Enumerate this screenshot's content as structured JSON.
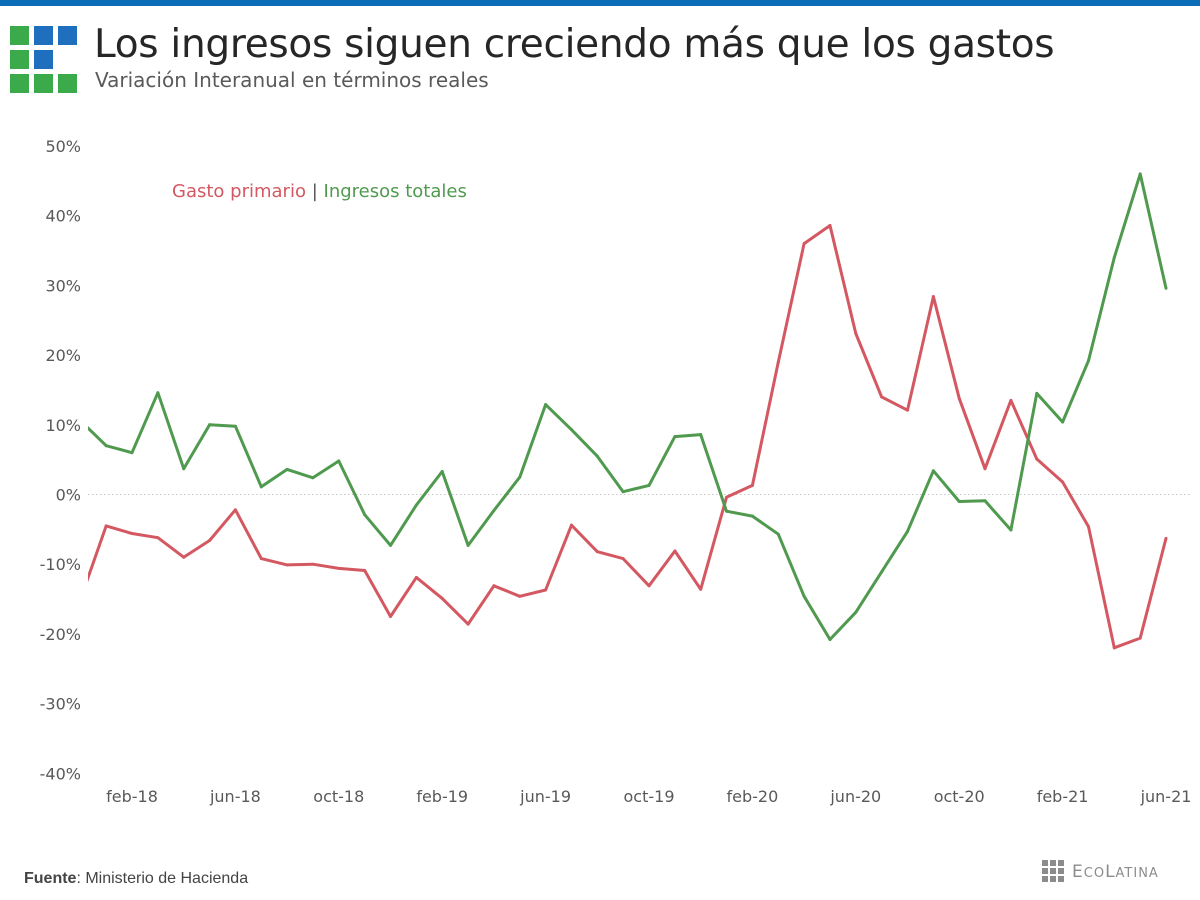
{
  "colors": {
    "top_bar": "#0b6cb8",
    "logo_green": "#3aaa4a",
    "logo_blue": "#1f6fbf",
    "series_gasto": "#d45861",
    "series_ingresos": "#4f9a4f",
    "zero_line": "#c8c8c8"
  },
  "header": {
    "title": "Los ingresos siguen creciendo más que los gastos",
    "subtitle": "Variación Interanual en términos reales",
    "logo_grid": [
      [
        "green",
        "blue",
        "blue"
      ],
      [
        "green",
        "blue",
        ""
      ],
      [
        "green",
        "green",
        "green"
      ]
    ]
  },
  "legend": {
    "gasto_label": "Gasto primario",
    "separator": "|",
    "ingresos_label": "Ingresos totales"
  },
  "footer": {
    "source_label": "Fuente",
    "source_text": ": Ministerio de Hacienda",
    "brand_first": "E",
    "brand_mid": "CO",
    "brand_l": "L",
    "brand_rest": "ATINA"
  },
  "chart_data": {
    "type": "line",
    "title": "Los ingresos siguen creciendo más que los gastos",
    "subtitle": "Variación Interanual en términos reales",
    "xlabel": "",
    "ylabel": "",
    "y_unit": "%",
    "ylim": [
      -40,
      50
    ],
    "y_ticks": [
      50,
      40,
      30,
      20,
      10,
      0,
      -10,
      -20,
      -30,
      -40
    ],
    "y_tick_labels": [
      "50%",
      "40%",
      "30%",
      "20%",
      "10%",
      "0%",
      "-10%",
      "-20%",
      "-30%",
      "-40%"
    ],
    "zero_line": "dotted",
    "grid": false,
    "legend_position": "top-left (inline text)",
    "x": [
      "dic-17",
      "ene-18",
      "feb-18",
      "mar-18",
      "abr-18",
      "may-18",
      "jun-18",
      "jul-18",
      "ago-18",
      "sep-18",
      "oct-18",
      "nov-18",
      "dic-18",
      "ene-19",
      "feb-19",
      "mar-19",
      "abr-19",
      "may-19",
      "jun-19",
      "jul-19",
      "ago-19",
      "sep-19",
      "oct-19",
      "nov-19",
      "dic-19",
      "ene-20",
      "feb-20",
      "mar-20",
      "abr-20",
      "may-20",
      "jun-20",
      "jul-20",
      "ago-20",
      "sep-20",
      "oct-20",
      "nov-20",
      "dic-20",
      "ene-21",
      "feb-21",
      "mar-21",
      "abr-21",
      "may-21",
      "jun-21"
    ],
    "x_tick_labels": [
      "feb-18",
      "jun-18",
      "oct-18",
      "feb-19",
      "jun-19",
      "oct-19",
      "feb-20",
      "jun-20",
      "oct-20",
      "feb-21",
      "jun-21"
    ],
    "x_tick_index": [
      2,
      6,
      10,
      14,
      18,
      22,
      26,
      30,
      34,
      38,
      42
    ],
    "series": [
      {
        "name": "Gasto primario",
        "color": "#d45861",
        "values": [
          -15.1,
          -4.5,
          -5.6,
          -6.2,
          -9.0,
          -6.6,
          -2.2,
          -9.2,
          -10.1,
          -10.0,
          -10.6,
          -10.9,
          -17.5,
          -11.9,
          -14.9,
          -18.6,
          -13.1,
          -14.6,
          -13.7,
          -4.4,
          -8.2,
          -9.2,
          -13.1,
          -8.1,
          -13.6,
          -0.4,
          1.3,
          19.0,
          36.0,
          38.6,
          23.1,
          14.0,
          12.1,
          28.4,
          13.8,
          3.7,
          13.5,
          5.1,
          1.8,
          -4.6,
          -22.0,
          -20.6,
          -6.3
        ]
      },
      {
        "name": "Ingresos totales",
        "color": "#4f9a4f",
        "values": [
          10.6,
          7.0,
          6.0,
          14.6,
          3.7,
          10.0,
          9.8,
          1.1,
          3.6,
          2.4,
          4.8,
          -2.9,
          -7.3,
          -1.5,
          3.3,
          -7.3,
          -2.3,
          2.5,
          12.9,
          9.3,
          5.5,
          0.4,
          1.3,
          8.3,
          8.6,
          -2.4,
          -3.1,
          -5.7,
          -14.6,
          -20.8,
          -16.9,
          -11.1,
          -5.3,
          3.4,
          -1.0,
          -0.9,
          -5.1,
          14.5,
          10.4,
          19.2,
          34.0,
          46.0,
          29.6
        ]
      }
    ]
  }
}
